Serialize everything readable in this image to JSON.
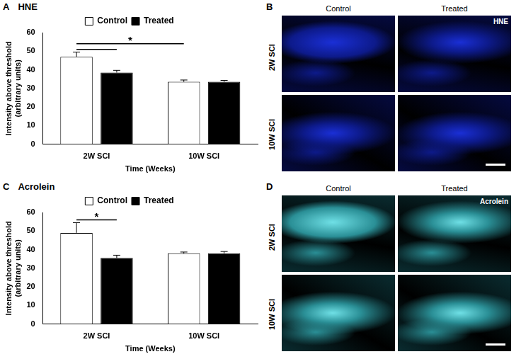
{
  "chart_data": [
    {
      "type": "bar",
      "panel": "A",
      "title": "HNE",
      "categories": [
        "2W SCI",
        "10W SCI"
      ],
      "series": [
        {
          "name": "Control",
          "color": "#ffffff",
          "values": [
            47,
            33.5
          ],
          "errors": [
            2.5,
            1
          ]
        },
        {
          "name": "Treated",
          "color": "#000000",
          "values": [
            38.5,
            33.5
          ],
          "errors": [
            1.2,
            0.8
          ]
        }
      ],
      "x_label": "Time (Weeks)",
      "y_label": [
        "Intensity above threshold",
        "(arbitrary units)"
      ],
      "ylim": [
        0,
        60
      ],
      "yticks": [
        0,
        10,
        20,
        30,
        40,
        50,
        60
      ],
      "grid": false,
      "legend": "top",
      "significance": [
        {
          "from": [
            "2W SCI",
            "Control"
          ],
          "to": [
            "2W SCI",
            "Treated"
          ],
          "y": 51
        },
        {
          "from": [
            "2W SCI",
            "Control"
          ],
          "to": [
            "10W SCI",
            "Control"
          ],
          "y": 54,
          "text": "*"
        }
      ]
    },
    {
      "type": "bar",
      "panel": "C",
      "title": "Acrolein",
      "categories": [
        "2W SCI",
        "10W SCI"
      ],
      "series": [
        {
          "name": "Control",
          "color": "#ffffff",
          "values": [
            49,
            38
          ],
          "errors": [
            5.5,
            0.7
          ]
        },
        {
          "name": "Treated",
          "color": "#000000",
          "values": [
            35.5,
            38
          ],
          "errors": [
            1.5,
            1
          ]
        }
      ],
      "x_label": "Time (Weeks)",
      "y_label": [
        "Intensity above threshold",
        "(arbitrary units)"
      ],
      "ylim": [
        0,
        60
      ],
      "yticks": [
        0,
        10,
        20,
        30,
        40,
        50,
        60
      ],
      "grid": false,
      "legend": "top",
      "significance": [
        {
          "from": [
            "2W SCI",
            "Control"
          ],
          "to": [
            "2W SCI",
            "Treated"
          ],
          "y": 56,
          "text": "*"
        }
      ]
    }
  ],
  "image_panels": [
    {
      "panel": "B",
      "stain": "HNE",
      "columns": [
        "Control",
        "Treated"
      ],
      "rows": [
        "2W SCI",
        "10W SCI"
      ]
    },
    {
      "panel": "D",
      "stain": "Acrolein",
      "columns": [
        "Control",
        "Treated"
      ],
      "rows": [
        "2W SCI",
        "10W SCI"
      ]
    }
  ]
}
